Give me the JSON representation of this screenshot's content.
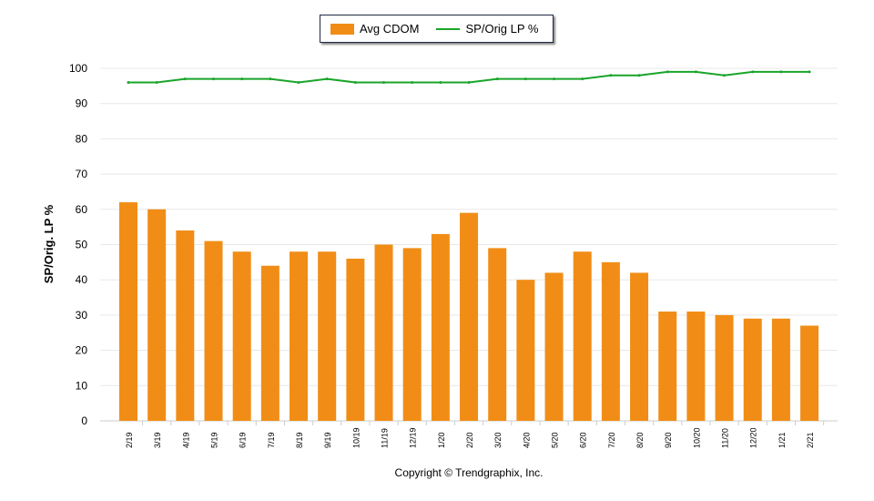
{
  "chart_data": {
    "type": "bar",
    "title": "",
    "xlabel": "",
    "ylabel": "SP/Orig. LP %",
    "ylim": [
      0,
      100
    ],
    "yticks": [
      0,
      10,
      20,
      30,
      40,
      50,
      60,
      70,
      80,
      90,
      100
    ],
    "grid": true,
    "legend_placement": "top",
    "categories": [
      "2/19",
      "3/19",
      "4/19",
      "5/19",
      "6/19",
      "7/19",
      "8/19",
      "9/19",
      "10/19",
      "11/19",
      "12/19",
      "1/20",
      "2/20",
      "3/20",
      "4/20",
      "5/20",
      "6/20",
      "7/20",
      "8/20",
      "9/20",
      "10/20",
      "11/20",
      "12/20",
      "1/21",
      "2/21"
    ],
    "series": [
      {
        "name": "Avg CDOM",
        "type": "bar",
        "color": "#f18d16",
        "values": [
          62,
          60,
          54,
          51,
          48,
          44,
          48,
          48,
          46,
          50,
          49,
          53,
          59,
          49,
          40,
          42,
          48,
          45,
          42,
          31,
          31,
          30,
          29,
          29,
          27
        ]
      },
      {
        "name": "SP/Orig LP %",
        "type": "line",
        "color": "#1aa52a",
        "values": [
          96,
          96,
          97,
          97,
          97,
          97,
          96,
          97,
          96,
          96,
          96,
          96,
          96,
          97,
          97,
          97,
          97,
          98,
          98,
          99,
          99,
          98,
          99,
          99,
          99
        ]
      }
    ]
  },
  "footer": {
    "copyright": "Copyright © Trendgraphix, Inc."
  }
}
